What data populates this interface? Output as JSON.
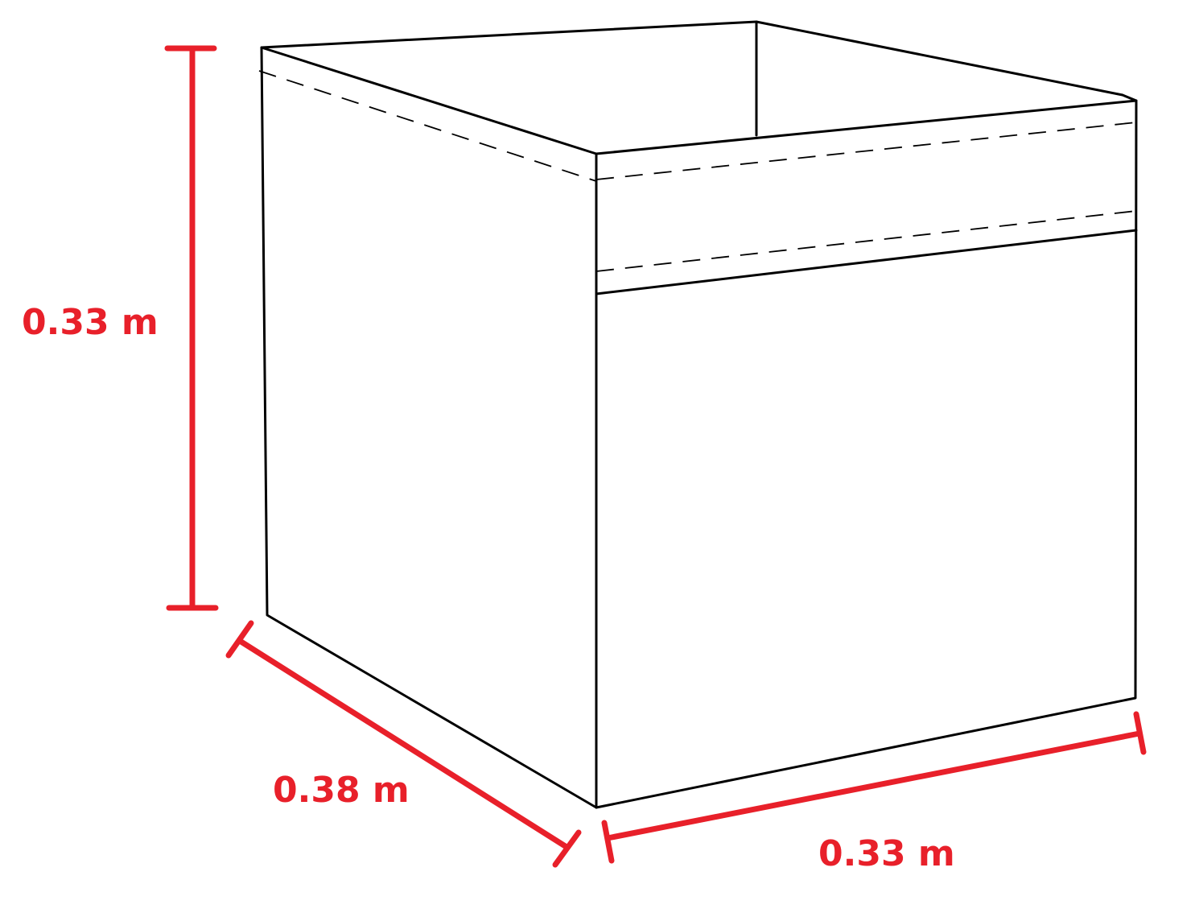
{
  "colors": {
    "outline": "#000000",
    "dimension": "#e8202a",
    "background": "#ffffff"
  },
  "dimensions": {
    "height": {
      "label": "0.33 m"
    },
    "depth": {
      "label": "0.38 m"
    },
    "width": {
      "label": "0.33 m"
    }
  }
}
